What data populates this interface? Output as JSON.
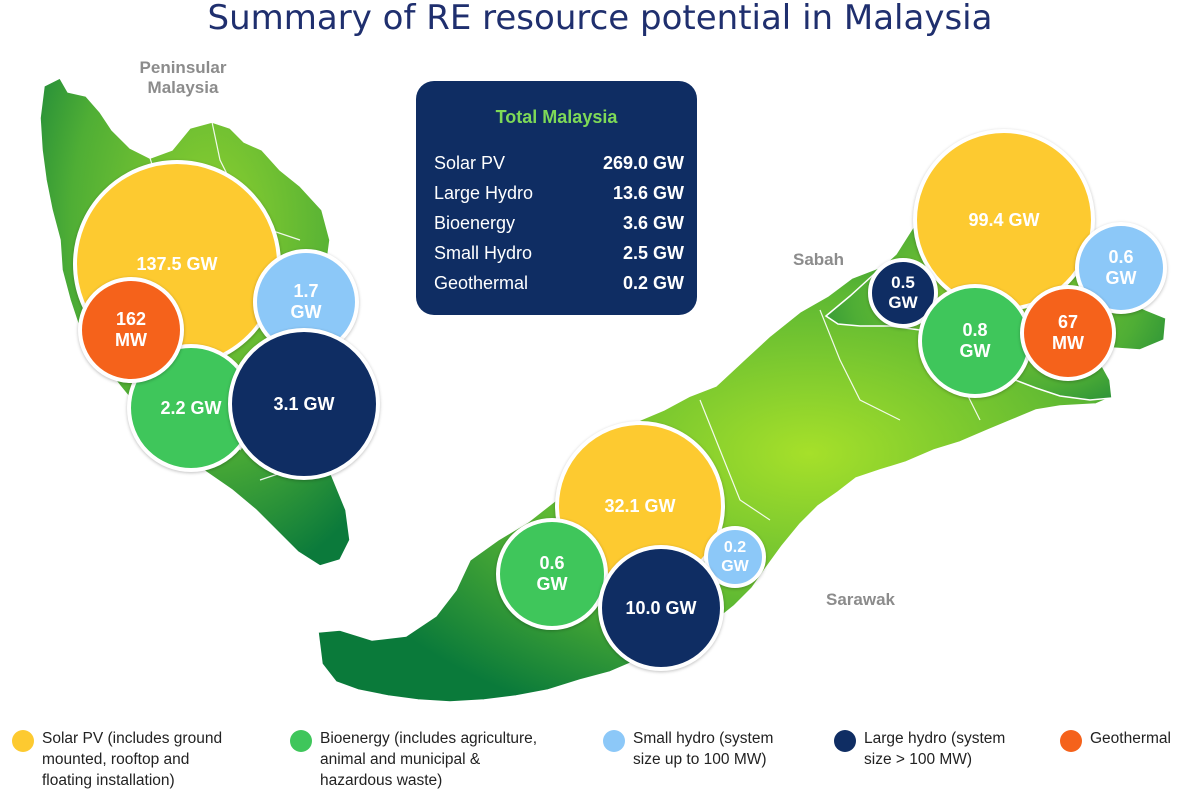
{
  "title": "Summary of RE resource potential in Malaysia",
  "colors": {
    "solar": "#fdca30",
    "bioenergy": "#3fc65b",
    "small_hydro": "#8cc8f8",
    "large_hydro": "#0f2d63",
    "geothermal": "#f5621b",
    "map_green": "#5bb333",
    "map_dark": "#0a7a3a",
    "map_light": "#a9dc2e"
  },
  "regions": {
    "peninsular": "Peninsular\nMalaysia",
    "sabah": "Sabah",
    "sarawak": "Sarawak"
  },
  "bubbles": {
    "pen_solar": "137.5 GW",
    "pen_geo": "162\nMW",
    "pen_small_hydro": "1.7\nGW",
    "pen_bio": "2.2 GW",
    "pen_large_hydro": "3.1 GW",
    "sab_solar": "99.4 GW",
    "sab_large_hydro": "0.5\nGW",
    "sab_small_hydro": "0.6\nGW",
    "sab_bio": "0.8\nGW",
    "sab_geo": "67\nMW",
    "sar_solar": "32.1 GW",
    "sar_bio": "0.6\nGW",
    "sar_small_hydro": "0.2\nGW",
    "sar_large_hydro": "10.0 GW"
  },
  "total": {
    "title": "Total Malaysia",
    "rows": [
      {
        "label": "Solar PV",
        "value": "269.0 GW"
      },
      {
        "label": "Large Hydro",
        "value": "13.6 GW"
      },
      {
        "label": "Bioenergy",
        "value": "3.6 GW"
      },
      {
        "label": "Small Hydro",
        "value": "2.5 GW"
      },
      {
        "label": "Geothermal",
        "value": "0.2 GW"
      }
    ]
  },
  "legend": [
    {
      "text": "Solar PV (includes ground\nmounted, rooftop and\nfloating installation)",
      "color": "#fdca30",
      "icon": "yellow-circle"
    },
    {
      "text": "Bioenergy (includes agriculture,\nanimal and municipal &\nhazardous waste)",
      "color": "#3fc65b",
      "icon": "green-circle"
    },
    {
      "text": "Small hydro (system\nsize up to 100 MW)",
      "color": "#8cc8f8",
      "icon": "light-blue-circle"
    },
    {
      "text": "Large hydro (system\nsize > 100 MW)",
      "color": "#0f2d63",
      "icon": "navy-circle"
    },
    {
      "text": "Geothermal",
      "color": "#f5621b",
      "icon": "orange-circle"
    }
  ]
}
